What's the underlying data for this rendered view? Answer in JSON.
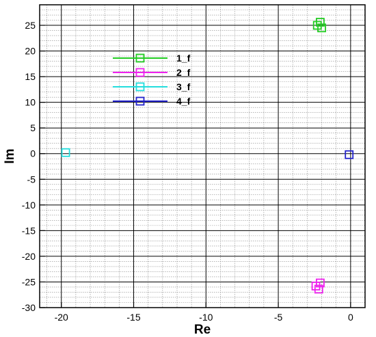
{
  "chart_data": {
    "type": "scatter",
    "title": "",
    "xlabel": "Re",
    "ylabel": "Im",
    "xlim": [
      -21.5,
      1
    ],
    "ylim": [
      -30,
      29
    ],
    "xticks": [
      -20,
      -15,
      -10,
      -5,
      0
    ],
    "yticks": [
      -30,
      -25,
      -20,
      -15,
      -10,
      -5,
      0,
      5,
      10,
      15,
      20,
      25
    ],
    "xminor_step": 1,
    "yminor_step": 1,
    "grid": true,
    "legend_position": "upper-left",
    "series": [
      {
        "name": "1_f",
        "color": "#22cc22",
        "marker": "square",
        "points": [
          [
            -2.1,
            25.6
          ],
          [
            -2.3,
            25.0
          ],
          [
            -2.0,
            24.5
          ]
        ]
      },
      {
        "name": "2_f",
        "color": "#ee22ee",
        "marker": "square",
        "points": [
          [
            -2.1,
            -25.2
          ],
          [
            -2.4,
            -25.8
          ],
          [
            -2.2,
            -26.4
          ]
        ]
      },
      {
        "name": "3_f",
        "color": "#22dddd",
        "marker": "square",
        "points": [
          [
            -19.7,
            0.2
          ]
        ]
      },
      {
        "name": "4_f",
        "color": "#2222cc",
        "marker": "square",
        "points": [
          [
            -0.1,
            -0.2
          ]
        ]
      }
    ]
  }
}
